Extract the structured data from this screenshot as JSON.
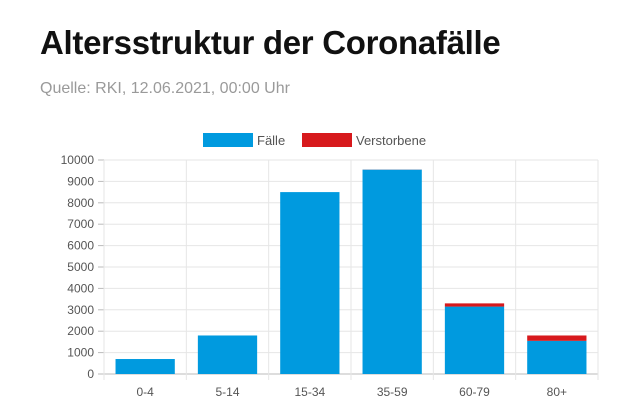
{
  "title": "Altersstruktur der Coronafälle",
  "subtitle": "Quelle: RKI, 12.06.2021, 00:00 Uhr",
  "colors": {
    "faelle": "#009ADF",
    "verstorbene": "#D7191C"
  },
  "chart_data": {
    "type": "bar",
    "stacked": true,
    "categories": [
      "0-4",
      "5-14",
      "15-34",
      "35-59",
      "60-79",
      "80+"
    ],
    "series": [
      {
        "name": "Fälle",
        "values": [
          700,
          1800,
          8500,
          9550,
          3150,
          1550
        ]
      },
      {
        "name": "Verstorbene",
        "values": [
          0,
          0,
          0,
          5,
          150,
          250
        ]
      }
    ],
    "ylim": [
      0,
      10000
    ],
    "yticks": [
      "0",
      "1000",
      "2000",
      "3000",
      "4000",
      "5000",
      "6000",
      "7000",
      "8000",
      "9000",
      "10000"
    ],
    "legend_position": "top",
    "grid": true
  }
}
